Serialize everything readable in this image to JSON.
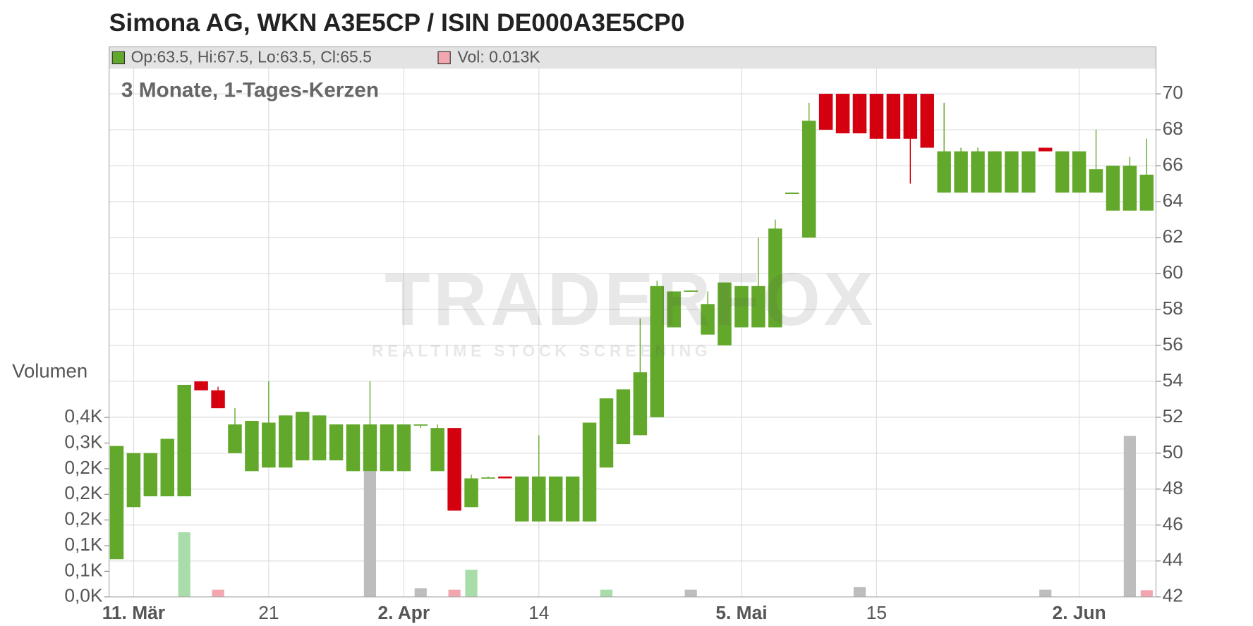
{
  "chart_data": {
    "type": "candlestick",
    "title": "Simona AG, WKN A3E5CP / ISIN DE000A3E5CP0",
    "subtitle": "3 Monate, 1-Tages-Kerzen",
    "legend": {
      "price": "Op:63.5, Hi:67.5, Lo:63.5, Cl:65.5",
      "volume": "Vol: 0.013K"
    },
    "watermark": {
      "brand": "TRADERFOX",
      "tagline": "REALTIME STOCK SCREENING"
    },
    "up_color": "#62a82a",
    "down_color": "#d40010",
    "grid": true,
    "categories": [
      null,
      "11. Mär",
      null,
      null,
      null,
      null,
      null,
      null,
      null,
      "21",
      null,
      null,
      null,
      null,
      null,
      null,
      null,
      "2. Apr",
      null,
      null,
      null,
      null,
      null,
      null,
      null,
      "14",
      null,
      null,
      null,
      null,
      null,
      null,
      null,
      null,
      null,
      null,
      null,
      "5. Mai",
      null,
      null,
      null,
      null,
      null,
      null,
      null,
      "15",
      null,
      null,
      null,
      null,
      null,
      null,
      null,
      null,
      null,
      null,
      null,
      "2. Jun",
      null,
      null,
      null,
      null
    ],
    "open": [
      44.1,
      47,
      47.6,
      47.6,
      47.6,
      54,
      53.5,
      50,
      49,
      49.2,
      49.2,
      49.6,
      49.6,
      49.6,
      49,
      49,
      49,
      49,
      51.6,
      49,
      51.4,
      47,
      48.6,
      48.7,
      46.2,
      46.2,
      46.2,
      46.2,
      46.2,
      49.2,
      50.5,
      51,
      52,
      57,
      59,
      56.6,
      56,
      57,
      57,
      57,
      64.5,
      62,
      70,
      70,
      70,
      70,
      70,
      70,
      70,
      64.5,
      64.5,
      64.5,
      64.5,
      64.5,
      64.5,
      67,
      64.5,
      64.5,
      64.5,
      63.5,
      63.5,
      63.5
    ],
    "high": [
      50.4,
      50,
      50,
      50.8,
      53.8,
      54,
      53.7,
      52.5,
      51.8,
      54,
      52.1,
      52.3,
      52.1,
      51.6,
      51.6,
      54,
      51.6,
      51.6,
      51.6,
      51.6,
      51.4,
      48.8,
      48.7,
      48.7,
      48.7,
      51,
      48.7,
      48.7,
      51.7,
      53.05,
      53.55,
      57.5,
      59.6,
      59,
      59.05,
      59,
      59.5,
      59.3,
      62,
      63,
      64.5,
      69.5,
      70,
      70,
      70,
      70,
      70,
      70,
      70,
      69.5,
      67,
      67,
      66.8,
      66.8,
      66.8,
      67,
      66.8,
      66.8,
      68,
      66,
      66.5,
      67.5
    ],
    "low": [
      44.1,
      47,
      47.6,
      47.6,
      47.6,
      53.5,
      52.5,
      50,
      49,
      49.2,
      49.2,
      49.6,
      49.6,
      49.6,
      49,
      49,
      49,
      49,
      51.4,
      49,
      46.8,
      47,
      48.6,
      48.6,
      46.2,
      46.2,
      46.2,
      46.2,
      46.2,
      49.2,
      50.5,
      51,
      52,
      57,
      59,
      56.6,
      56,
      57,
      57,
      57,
      64.5,
      62,
      68,
      67.8,
      67.8,
      67.5,
      67.5,
      65,
      67,
      64.5,
      64.5,
      64.5,
      64.5,
      64.5,
      64.5,
      66.8,
      64.5,
      64.5,
      64.5,
      63.5,
      63.5,
      63.5
    ],
    "close": [
      50.4,
      50,
      50,
      50.8,
      53.8,
      53.5,
      52.5,
      51.6,
      51.8,
      51.7,
      52.1,
      52.3,
      52.1,
      51.6,
      51.6,
      51.6,
      51.6,
      51.6,
      51.6,
      51.4,
      46.8,
      48.6,
      48.65,
      48.6,
      48.7,
      48.7,
      48.7,
      48.7,
      51.7,
      53.05,
      53.55,
      54.5,
      59.3,
      59,
      59.05,
      58.3,
      59.5,
      59.3,
      59.3,
      62.5,
      64.5,
      68.5,
      68,
      67.8,
      67.8,
      67.5,
      67.5,
      67.5,
      67,
      66.8,
      66.8,
      66.8,
      66.8,
      66.8,
      66.8,
      66.8,
      66.8,
      66.8,
      65.8,
      66,
      66,
      65.5
    ],
    "ylim": [
      42,
      71.4
    ],
    "yticks": [
      42,
      44,
      46,
      48,
      50,
      52,
      54,
      56,
      58,
      60,
      62,
      64,
      66,
      68,
      70
    ],
    "volume": {
      "axis_label": "Volumen",
      "values": [
        null,
        null,
        null,
        null,
        0.126,
        null,
        0.014,
        null,
        null,
        null,
        null,
        null,
        null,
        null,
        null,
        0.245,
        null,
        null,
        0.017,
        null,
        0.014,
        0.053,
        null,
        null,
        null,
        null,
        null,
        null,
        null,
        0.014,
        null,
        null,
        null,
        null,
        0.014,
        null,
        null,
        null,
        null,
        null,
        null,
        null,
        null,
        null,
        0.019,
        null,
        null,
        null,
        null,
        null,
        null,
        null,
        null,
        null,
        null,
        0.014,
        null,
        null,
        null,
        null,
        0.314,
        0.013
      ],
      "colors": [
        null,
        null,
        null,
        null,
        "#a8dca8",
        null,
        "#f2a6b0",
        null,
        null,
        null,
        null,
        null,
        null,
        null,
        null,
        "#bdbdbd",
        null,
        null,
        "#bdbdbd",
        null,
        "#f2a6b0",
        "#a8dca8",
        null,
        null,
        null,
        null,
        null,
        null,
        null,
        "#a8dca8",
        null,
        null,
        null,
        null,
        "#bdbdbd",
        null,
        null,
        null,
        null,
        null,
        null,
        null,
        null,
        null,
        "#bdbdbd",
        null,
        null,
        null,
        null,
        null,
        null,
        null,
        null,
        null,
        null,
        "#bdbdbd",
        null,
        null,
        null,
        null,
        "#bdbdbd",
        "#f2a6b0"
      ],
      "ylim": [
        0,
        1.03
      ],
      "yticks": [
        {
          "value": 0,
          "label": "0,0K"
        },
        {
          "value": 0.05,
          "label": "0,1K"
        },
        {
          "value": 0.1,
          "label": "0,1K"
        },
        {
          "value": 0.15,
          "label": "0,2K"
        },
        {
          "value": 0.2,
          "label": "0,2K"
        },
        {
          "value": 0.25,
          "label": "0,2K"
        },
        {
          "value": 0.3,
          "label": "0,3K"
        },
        {
          "value": 0.35,
          "label": "0,4K"
        }
      ]
    }
  }
}
